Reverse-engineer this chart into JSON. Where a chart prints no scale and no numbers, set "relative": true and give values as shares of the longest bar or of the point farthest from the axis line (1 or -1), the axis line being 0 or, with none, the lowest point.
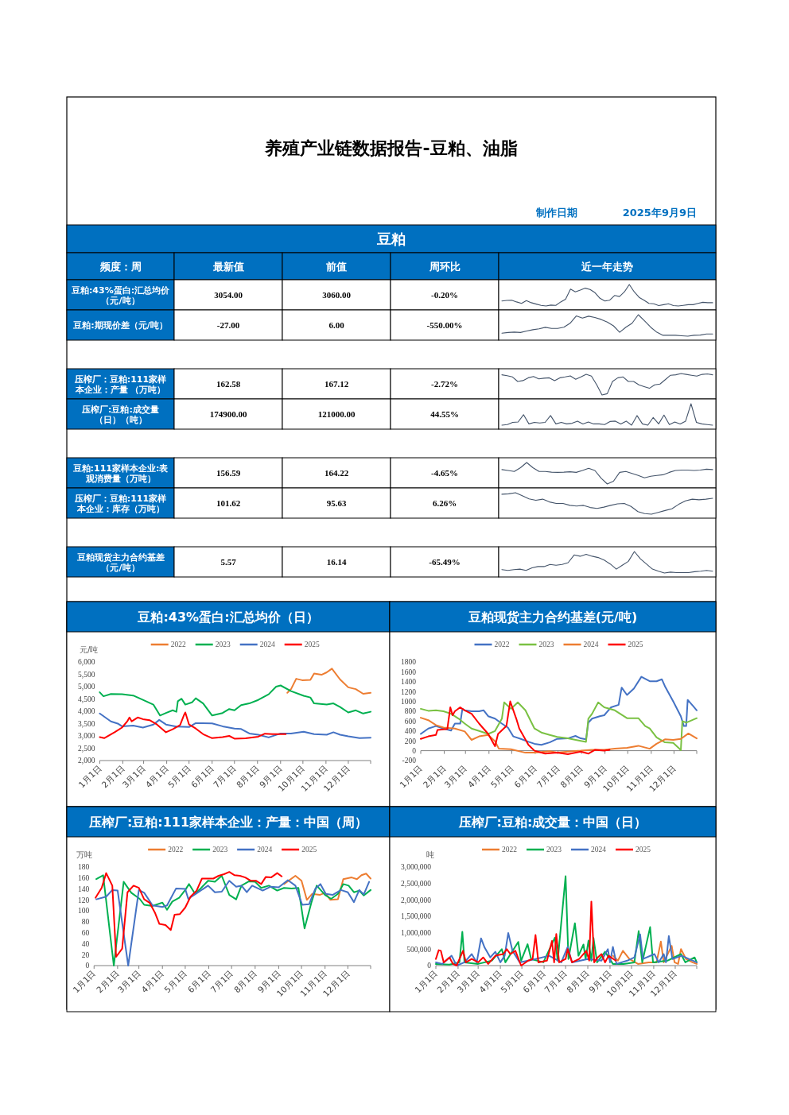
{
  "chart_data": [
    {
      "type": "other",
      "title": "养殖产业链数据报告-豆粕、油脂",
      "annotations": [
        "制作日期",
        "2025年9月9日"
      ]
    },
    {
      "type": "other",
      "title": "豆粕",
      "color": "#0070c0",
      "categories": [
        "频度：周",
        "最新值",
        "前值",
        "周环比",
        "近一年走势"
      ],
      "y_categories": [
        "豆粕:43%蛋白:汇总均价（元/吨）",
        "豆粕:期现价差（元/吨）",
        null,
        "压榨厂：豆粕:111家样本企业：产量 （万吨）",
        "压榨厂:豆粕:成交量（日）（吨）",
        null,
        "豆粕:111家样本企业:表观消费量（万吨）",
        "压榨厂：豆粕:111家样本企业：库存（万吨）",
        null,
        "豆粕现货主力合约基差（元/吨）"
      ],
      "cell_labels": [
        [
          "3054.00",
          "3060.00",
          "-0.20%"
        ],
        [
          "-27.00",
          "6.00",
          "-550.00%"
        ],
        null,
        [
          "162.58",
          "167.12",
          "-2.72%"
        ],
        [
          "174900.00",
          "121000.00",
          "44.55%"
        ],
        null,
        [
          "156.59",
          "164.22",
          "-4.65%"
        ],
        [
          "101.62",
          "95.63",
          "6.26%"
        ],
        null,
        [
          "5.57",
          "16.14",
          "-65.49%"
        ]
      ]
    },
    {
      "type": "line",
      "relative": true,
      "color": "#44546a",
      "categories": [
        null,
        null,
        null,
        null,
        null,
        null,
        null,
        null,
        null,
        null,
        null,
        null,
        null,
        null,
        null,
        null,
        null,
        null,
        null,
        null,
        null,
        null,
        null,
        null,
        null,
        null,
        null,
        null,
        null,
        null,
        null,
        null,
        null,
        null,
        null,
        null,
        null,
        null,
        null,
        null,
        null,
        null,
        null,
        null
      ],
      "values": [
        0.23,
        0.26,
        0.27,
        0.19,
        0.12,
        0.25,
        0.15,
        0.09,
        0.03,
        0,
        0.04,
        0.03,
        0.19,
        0.32,
        0.79,
        0.66,
        0.74,
        0.83,
        0.77,
        0.62,
        0.36,
        0.23,
        0.27,
        0.49,
        0.44,
        0.66,
        1,
        0.66,
        0.4,
        0.27,
        0.12,
        0.1,
        0.02,
        0.06,
        0.1,
        0.02,
        0,
        0.03,
        0.06,
        0.06,
        0.12,
        0.17,
        0.15,
        0.15
      ]
    },
    {
      "type": "line",
      "relative": true,
      "color": "#44546a",
      "categories": [
        null,
        null,
        null,
        null,
        null,
        null,
        null,
        null,
        null,
        null,
        null,
        null,
        null,
        null,
        null,
        null,
        null,
        null,
        null,
        null,
        null,
        null,
        null,
        null,
        null,
        null,
        null,
        null,
        null,
        null,
        null,
        null,
        null,
        null,
        null
      ],
      "values": [
        0.14,
        0.17,
        0.19,
        0.17,
        0.24,
        0.3,
        0.34,
        0.41,
        0.36,
        0.36,
        0.42,
        0.6,
        0.94,
        0.84,
        0.93,
        0.87,
        0.78,
        0.66,
        0.48,
        0.18,
        0.42,
        0.6,
        1,
        0.72,
        0.42,
        0.18,
        0.04,
        0.04,
        0.04,
        0.02,
        0,
        0.04,
        0.05,
        0.1,
        0.1
      ]
    },
    {
      "type": "line",
      "relative": true,
      "color": "#44546a",
      "categories": [
        null,
        null,
        null,
        null,
        null,
        null,
        null,
        null,
        null,
        null,
        null,
        null,
        null,
        null,
        null,
        null,
        null,
        null,
        null,
        null,
        null,
        null,
        null,
        null,
        null,
        null,
        null,
        null,
        null,
        null,
        null,
        null,
        null,
        null,
        null,
        null,
        null,
        null,
        null,
        null,
        null
      ],
      "values": [
        0.94,
        0.9,
        0.84,
        0.63,
        0.67,
        0.8,
        0.86,
        0.75,
        0.78,
        0.8,
        0.67,
        0.8,
        0.84,
        0.89,
        0.73,
        0.84,
        0.96,
        0.88,
        0.47,
        0,
        0.06,
        0.63,
        0.8,
        0.84,
        0.63,
        0.63,
        0.47,
        0.39,
        0.31,
        0.47,
        0.51,
        0.71,
        0.92,
        0.94,
        1,
        0.96,
        0.92,
        0.88,
        0.96,
        0.98,
        0.94
      ]
    },
    {
      "type": "line",
      "relative": true,
      "color": "#44546a",
      "categories": [
        null,
        null,
        null,
        null,
        null,
        null,
        null,
        null,
        null,
        null,
        null,
        null,
        null,
        null,
        null,
        null,
        null,
        null,
        null,
        null,
        null,
        null,
        null,
        null,
        null,
        null,
        null,
        null,
        null,
        null,
        null,
        null,
        null,
        null,
        null,
        null,
        null,
        null,
        null,
        null
      ],
      "values": [
        0,
        0.03,
        0.13,
        0.15,
        0.49,
        0.06,
        0.13,
        0.1,
        0.13,
        0.45,
        0.06,
        0.13,
        0.06,
        0.09,
        0.19,
        0.06,
        0.15,
        0.06,
        0.06,
        0.03,
        0.17,
        0.19,
        0.06,
        0.19,
        0,
        0.45,
        0.06,
        0,
        0.36,
        0.06,
        0.47,
        0.03,
        0.15,
        0.06,
        0.19,
        1,
        0.13,
        0.06,
        0.03,
        0
      ]
    },
    {
      "type": "line",
      "relative": true,
      "color": "#44546a",
      "categories": [
        null,
        null,
        null,
        null,
        null,
        null,
        null,
        null,
        null,
        null,
        null,
        null,
        null,
        null,
        null,
        null,
        null,
        null,
        null,
        null,
        null,
        null,
        null,
        null,
        null,
        null,
        null,
        null,
        null,
        null,
        null,
        null,
        null,
        null,
        null
      ],
      "values": [
        0.67,
        0.63,
        0.58,
        0.76,
        1,
        0.76,
        0.58,
        0.58,
        0.55,
        0.54,
        0.55,
        0.57,
        0.54,
        0.63,
        0.73,
        0.63,
        0.27,
        0,
        0.13,
        0.54,
        0.58,
        0.49,
        0.4,
        0.29,
        0.36,
        0.4,
        0.43,
        0.54,
        0.63,
        0.65,
        0.65,
        0.63,
        0.65,
        0.69,
        0.67
      ]
    },
    {
      "type": "line",
      "relative": true,
      "color": "#44546a",
      "categories": [
        null,
        null,
        null,
        null,
        null,
        null,
        null,
        null,
        null,
        null,
        null,
        null,
        null,
        null,
        null,
        null,
        null,
        null,
        null,
        null,
        null,
        null,
        null,
        null,
        null,
        null,
        null,
        null,
        null,
        null,
        null,
        null
      ],
      "values": [
        0.93,
        0.95,
        1,
        0.86,
        0.71,
        0.65,
        0.7,
        0.57,
        0.5,
        0.5,
        0.41,
        0.38,
        0.41,
        0.31,
        0.27,
        0.33,
        0.41,
        0.48,
        0.5,
        0.36,
        0.12,
        0.03,
        0,
        0.08,
        0.17,
        0.25,
        0.46,
        0.62,
        0.7,
        0.67,
        0.7,
        0.74
      ]
    },
    {
      "type": "line",
      "relative": true,
      "color": "#44546a",
      "categories": [
        null,
        null,
        null,
        null,
        null,
        null,
        null,
        null,
        null,
        null,
        null,
        null,
        null,
        null,
        null,
        null,
        null,
        null,
        null,
        null,
        null,
        null,
        null,
        null,
        null,
        null,
        null,
        null,
        null,
        null,
        null,
        null,
        null,
        null,
        null,
        null
      ],
      "values": [
        0.16,
        0.12,
        0.16,
        0.18,
        0.12,
        0.24,
        0.3,
        0.3,
        0.4,
        0.36,
        0.4,
        0.48,
        0.84,
        0.78,
        0.87,
        0.78,
        0.72,
        0.6,
        0.42,
        0.18,
        0.36,
        0.54,
        1,
        0.66,
        0.42,
        0.18,
        0.08,
        0,
        0.04,
        0.02,
        0.02,
        0.02,
        0.06,
        0.08,
        0.12,
        0.08
      ]
    },
    {
      "type": "line",
      "title": "豆粕:43%蛋白:汇总均价（日）",
      "ylabel": "元/吨",
      "legend": "top",
      "xlim": [
        "--01-01",
        "--12-31"
      ],
      "xticks": [
        {
          "value": "--01-01",
          "label": "1月1日"
        },
        {
          "value": "--02-01",
          "label": "2月1日"
        },
        {
          "value": "--03-01",
          "label": "3月1日"
        },
        {
          "value": "--04-01",
          "label": "4月1日"
        },
        {
          "value": "--05-01",
          "label": "5月1日"
        },
        {
          "value": "--06-01",
          "label": "6月1日"
        },
        {
          "value": "--07-01",
          "label": "7月1日"
        },
        {
          "value": "--08-01",
          "label": "8月1日"
        },
        {
          "value": "--09-01",
          "label": "9月1日"
        },
        {
          "value": "--10-01",
          "label": "10月1日"
        },
        {
          "value": "--11-01",
          "label": "11月1日"
        },
        {
          "value": "--12-01",
          "label": "12月1日"
        }
      ],
      "ylim": [
        2000,
        6000
      ],
      "yticks": [
        {
          "value": 2000,
          "label": "2,000"
        },
        {
          "value": 2500,
          "label": "2,500"
        },
        {
          "value": 3000,
          "label": "3,000"
        },
        {
          "value": 3500,
          "label": "3,500"
        },
        {
          "value": 4000,
          "label": "4,000"
        },
        {
          "value": 4500,
          "label": "4,500"
        },
        {
          "value": 5000,
          "label": "5,000"
        },
        {
          "value": 5500,
          "label": "5,500"
        },
        {
          "value": 6000,
          "label": "6,000"
        }
      ],
      "series": [
        {
          "name": "2022",
          "color": "#ed7d31",
          "x": [
            "--09-10",
            "--09-15",
            "--09-22",
            "--09-30",
            "--10-11",
            "--10-16",
            "--10-26",
            "--11-02",
            "--11-09",
            "--11-20",
            "--12-01",
            "--12-11",
            "--12-21",
            "--12-31"
          ],
          "values": [
            4750,
            4900,
            5320,
            5260,
            5270,
            5530,
            5480,
            5580,
            5730,
            5290,
            4970,
            4900,
            4710,
            4750
          ]
        },
        {
          "name": "2023",
          "color": "#00b050",
          "x": [
            "--01-01",
            "--01-06",
            "--01-16",
            "--01-31",
            "--02-15",
            "--02-28",
            "--03-14",
            "--03-23",
            "--03-31",
            "--04-09",
            "--04-14",
            "--04-16",
            "--04-21",
            "--04-26",
            "--05-05",
            "--05-10",
            "--05-20",
            "--06-01",
            "--06-15",
            "--06-24",
            "--07-01",
            "--07-10",
            "--07-21",
            "--08-02",
            "--08-16",
            "--08-26",
            "--09-01",
            "--09-15",
            "--10-02",
            "--10-11",
            "--10-16",
            "--11-02",
            "--11-11",
            "--11-20",
            "--12-01",
            "--12-11",
            "--12-21",
            "--12-31"
          ],
          "values": [
            4770,
            4610,
            4700,
            4690,
            4640,
            4460,
            4270,
            3830,
            3930,
            4040,
            3980,
            4410,
            4510,
            4270,
            4360,
            4530,
            4320,
            3830,
            3930,
            4090,
            4040,
            4250,
            4320,
            4460,
            4690,
            5000,
            5050,
            4820,
            4630,
            4560,
            4320,
            4270,
            4320,
            4170,
            3950,
            4040,
            3910,
            3980
          ]
        },
        {
          "name": "2024",
          "color": "#4472c4",
          "x": [
            "--01-01",
            "--01-16",
            "--01-26",
            "--01-31",
            "--02-15",
            "--02-28",
            "--03-14",
            "--03-22",
            "--03-31",
            "--04-14",
            "--05-01",
            "--05-10",
            "--06-01",
            "--06-15",
            "--07-01",
            "--07-10",
            "--07-21",
            "--08-02",
            "--08-16",
            "--09-01",
            "--09-15",
            "--10-02",
            "--10-16",
            "--11-02",
            "--11-11",
            "--11-20",
            "--12-01",
            "--12-16",
            "--12-31"
          ],
          "values": [
            3910,
            3590,
            3490,
            3390,
            3420,
            3340,
            3460,
            3650,
            3460,
            3380,
            3360,
            3520,
            3510,
            3390,
            3300,
            3280,
            3100,
            3050,
            2940,
            3100,
            3100,
            3170,
            3070,
            3050,
            3150,
            3050,
            2980,
            2910,
            2930
          ]
        },
        {
          "name": "2025",
          "color": "#ff0000",
          "x": [
            "--01-01",
            "--01-07",
            "--01-21",
            "--01-31",
            "--02-07",
            "--02-10",
            "--02-13",
            "--02-21",
            "--02-28",
            "--03-09",
            "--03-19",
            "--03-31",
            "--04-09",
            "--04-19",
            "--04-24",
            "--04-26",
            "--05-01",
            "--05-10",
            "--05-20",
            "--06-01",
            "--06-15",
            "--06-24",
            "--07-01",
            "--07-16",
            "--08-02",
            "--08-11",
            "--08-21",
            "--09-01",
            "--09-08"
          ],
          "values": [
            2950,
            2910,
            3150,
            3340,
            3590,
            3750,
            3590,
            3750,
            3680,
            3640,
            3460,
            3150,
            3270,
            3440,
            3830,
            3950,
            3460,
            3300,
            3070,
            2910,
            2950,
            3000,
            2890,
            2900,
            2970,
            3090,
            3070,
            3070,
            3070
          ]
        }
      ]
    },
    {
      "type": "line",
      "title": "豆粕现货主力合约基差(元/吨)",
      "legend": "top",
      "xlim": [
        "--01-01",
        "--12-31"
      ],
      "xticks": [
        {
          "value": "--01-01",
          "label": "1月1日"
        },
        {
          "value": "--02-01",
          "label": "2月1日"
        },
        {
          "value": "--03-01",
          "label": "3月1日"
        },
        {
          "value": "--04-01",
          "label": "4月1日"
        },
        {
          "value": "--05-01",
          "label": "5月1日"
        },
        {
          "value": "--06-01",
          "label": "6月1日"
        },
        {
          "value": "--07-01",
          "label": "7月1日"
        },
        {
          "value": "--08-01",
          "label": "8月1日"
        },
        {
          "value": "--09-01",
          "label": "9月1日"
        },
        {
          "value": "--10-01",
          "label": "10月1日"
        },
        {
          "value": "--11-01",
          "label": "11月1日"
        },
        {
          "value": "--12-01",
          "label": "12月1日"
        }
      ],
      "ylim": [
        -200,
        1800
      ],
      "yticks": [
        -200,
        0,
        200,
        400,
        600,
        800,
        1000,
        1200,
        1400,
        1600,
        1800
      ],
      "series": [
        {
          "name": "2022",
          "color": "#4472c4",
          "x": [
            "--01-01",
            "--01-11",
            "--01-21",
            "--01-31",
            "--02-10",
            "--02-15",
            "--02-22",
            "--02-25",
            "--02-28",
            "--03-09",
            "--03-19",
            "--03-25",
            "--03-31",
            "--04-09",
            "--04-18",
            "--04-26",
            "--05-03",
            "--05-13",
            "--05-23",
            "--05-31",
            "--06-09",
            "--06-20",
            "--06-30",
            "--07-14",
            "--07-24",
            "--07-31",
            "--08-07",
            "--08-10",
            "--08-15",
            "--08-25",
            "--08-31",
            "--09-09",
            "--09-19",
            "--09-23",
            "--09-30",
            "--10-09",
            "--10-19",
            "--10-30",
            "--11-08",
            "--11-15",
            "--11-19",
            "--11-30",
            "--12-10",
            "--12-14",
            "--12-17",
            "--12-19",
            "--12-26",
            "--12-31"
          ],
          "values": [
            340,
            450,
            500,
            450,
            410,
            550,
            550,
            850,
            820,
            800,
            800,
            820,
            700,
            650,
            550,
            470,
            290,
            240,
            180,
            140,
            120,
            170,
            240,
            250,
            300,
            250,
            230,
            570,
            650,
            700,
            720,
            880,
            930,
            1280,
            1130,
            1260,
            1500,
            1410,
            1410,
            1450,
            1310,
            1000,
            700,
            500,
            500,
            1030,
            910,
            820
          ]
        },
        {
          "name": "2023",
          "color": "#7ac143",
          "x": [
            "--01-01",
            "--01-11",
            "--01-21",
            "--01-31",
            "--02-10",
            "--02-20",
            "--02-28",
            "--03-09",
            "--03-19",
            "--03-31",
            "--04-09",
            "--04-18",
            "--04-21",
            "--04-30",
            "--05-09",
            "--05-19",
            "--05-31",
            "--06-09",
            "--06-20",
            "--06-30",
            "--07-14",
            "--07-31",
            "--08-07",
            "--08-10",
            "--08-15",
            "--08-23",
            "--08-31",
            "--09-14",
            "--09-30",
            "--10-15",
            "--10-24",
            "--10-30",
            "--11-08",
            "--11-19",
            "--11-30",
            "--12-07",
            "--12-10",
            "--12-12",
            "--12-17",
            "--12-31"
          ],
          "values": [
            850,
            810,
            820,
            800,
            750,
            650,
            550,
            450,
            400,
            340,
            400,
            650,
            980,
            850,
            980,
            820,
            450,
            370,
            320,
            280,
            250,
            200,
            180,
            650,
            750,
            980,
            880,
            820,
            660,
            660,
            500,
            450,
            270,
            170,
            160,
            60,
            10,
            600,
            570,
            660
          ]
        },
        {
          "name": "2024",
          "color": "#ed7d31",
          "x": [
            "--01-01",
            "--01-11",
            "--01-21",
            "--01-31",
            "--02-15",
            "--02-28",
            "--03-09",
            "--03-19",
            "--03-31",
            "--04-09",
            "--04-14",
            "--04-30",
            "--05-19",
            "--05-31",
            "--06-20",
            "--06-30",
            "--07-20",
            "--07-31",
            "--08-15",
            "--08-31",
            "--09-14",
            "--09-30",
            "--10-15",
            "--10-30",
            "--11-08",
            "--11-19",
            "--11-30",
            "--12-10",
            "--12-20",
            "--12-31"
          ],
          "values": [
            670,
            620,
            520,
            470,
            450,
            390,
            220,
            290,
            320,
            190,
            40,
            30,
            -40,
            -40,
            -10,
            -40,
            -10,
            0,
            20,
            20,
            40,
            60,
            100,
            40,
            140,
            230,
            220,
            240,
            350,
            250
          ]
        },
        {
          "name": "2025",
          "color": "#ff0000",
          "x": [
            "--01-01",
            "--01-11",
            "--01-21",
            "--01-23",
            "--02-05",
            "--02-09",
            "--02-12",
            "--02-15",
            "--02-22",
            "--02-28",
            "--03-09",
            "--03-19",
            "--03-31",
            "--04-09",
            "--04-13",
            "--04-24",
            "--04-29",
            "--05-07",
            "--05-11",
            "--05-23",
            "--05-31",
            "--06-14",
            "--06-30",
            "--07-14",
            "--07-31",
            "--08-10",
            "--08-19",
            "--08-31",
            "--09-07"
          ],
          "values": [
            240,
            290,
            320,
            420,
            440,
            880,
            720,
            800,
            880,
            820,
            750,
            550,
            340,
            90,
            340,
            500,
            1000,
            650,
            450,
            120,
            0,
            -60,
            -40,
            -70,
            -20,
            -60,
            20,
            0,
            20
          ]
        }
      ]
    },
    {
      "type": "line",
      "title": "压榨厂:豆粕:111家样本企业：产量：中国（周）",
      "ylabel": "万吨",
      "legend": "top",
      "xlim": [
        "--01-01",
        "--12-31"
      ],
      "xticks": [
        {
          "value": "--01-01",
          "label": "1月1日"
        },
        {
          "value": "--02-01",
          "label": "2月1日"
        },
        {
          "value": "--03-01",
          "label": "3月1日"
        },
        {
          "value": "--04-01",
          "label": "4月1日"
        },
        {
          "value": "--05-01",
          "label": "5月1日"
        },
        {
          "value": "--06-01",
          "label": "6月1日"
        },
        {
          "value": "--07-01",
          "label": "7月1日"
        },
        {
          "value": "--08-01",
          "label": "8月1日"
        },
        {
          "value": "--09-01",
          "label": "9月1日"
        },
        {
          "value": "--10-01",
          "label": "10月1日"
        },
        {
          "value": "--11-01",
          "label": "11月1日"
        },
        {
          "value": "--12-01",
          "label": "12月1日"
        }
      ],
      "ylim": [
        0,
        180
      ],
      "yticks": [
        0,
        20,
        40,
        60,
        80,
        100,
        120,
        140,
        160,
        180
      ],
      "series": [
        {
          "name": "2022",
          "color": "#ed7d31",
          "x": [
            "--09-08",
            "--09-23",
            "--10-01",
            "--10-08",
            "--10-15",
            "--10-25",
            "--11-01",
            "--11-08",
            "--11-18",
            "--11-25",
            "--12-06",
            "--12-13",
            "--12-19",
            "--12-25",
            "--12-31"
          ],
          "values": [
            149,
            164,
            155,
            120,
            131,
            129,
            133,
            120,
            121,
            158,
            161,
            158,
            165,
            168,
            159
          ]
        },
        {
          "name": "2023",
          "color": "#00b050",
          "x": [
            "--01-04",
            "--01-13",
            "--01-27",
            "--02-09",
            "--02-19",
            "--03-02",
            "--03-08",
            "--03-19",
            "--04-01",
            "--04-07",
            "--04-14",
            "--04-23",
            "--05-01",
            "--05-06",
            "--05-14",
            "--05-22",
            "--05-31",
            "--06-09",
            "--06-18",
            "--06-28",
            "--07-07",
            "--07-14",
            "--07-24",
            "--08-01",
            "--08-09",
            "--08-19",
            "--08-30",
            "--09-08",
            "--09-18",
            "--09-27",
            "--10-05",
            "--10-14",
            "--10-21",
            "--11-01",
            "--11-09",
            "--11-18",
            "--11-25",
            "--12-02",
            "--12-09",
            "--12-16",
            "--12-22",
            "--12-31"
          ],
          "values": [
            158,
            165,
            0,
            153,
            133,
            122,
            111,
            109,
            115,
            102,
            117,
            124,
            138,
            149,
            131,
            142,
            155,
            153,
            164,
            129,
            121,
            146,
            154,
            153,
            142,
            146,
            137,
            142,
            141,
            142,
            68,
            115,
            146,
            129,
            122,
            131,
            149,
            146,
            134,
            137,
            128,
            138
          ]
        },
        {
          "name": "2024",
          "color": "#4472c4",
          "x": [
            "--01-04",
            "--01-17",
            "--01-25",
            "--02-01",
            "--02-15",
            "--03-01",
            "--03-08",
            "--03-19",
            "--04-01",
            "--04-07",
            "--04-19",
            "--05-01",
            "--05-05",
            "--05-17",
            "--05-31",
            "--06-09",
            "--06-18",
            "--06-28",
            "--07-07",
            "--07-14",
            "--07-21",
            "--07-28",
            "--08-11",
            "--08-21",
            "--09-01",
            "--09-13",
            "--09-23",
            "--10-02",
            "--10-11",
            "--10-19",
            "--10-26",
            "--11-02",
            "--11-11",
            "--11-22",
            "--12-01",
            "--12-09",
            "--12-16",
            "--12-22",
            "--12-29"
          ],
          "values": [
            121,
            126,
            138,
            137,
            0,
            138,
            133,
            110,
            107,
            110,
            141,
            140,
            122,
            133,
            146,
            134,
            135,
            155,
            144,
            146,
            134,
            146,
            137,
            144,
            143,
            156,
            146,
            111,
            112,
            140,
            149,
            131,
            129,
            138,
            134,
            116,
            138,
            130,
            153
          ]
        },
        {
          "name": "2025",
          "color": "#ff0000",
          "x": [
            "--01-03",
            "--01-11",
            "--01-17",
            "--01-25",
            "--01-30",
            "--02-07",
            "--02-14",
            "--02-22",
            "--03-01",
            "--03-08",
            "--03-15",
            "--03-22",
            "--03-28",
            "--04-05",
            "--04-12",
            "--04-17",
            "--04-24",
            "--05-01",
            "--05-08",
            "--05-16",
            "--05-23",
            "--05-31",
            "--06-07",
            "--06-14",
            "--06-21",
            "--06-28",
            "--07-05",
            "--07-12",
            "--07-19",
            "--07-26",
            "--08-02",
            "--08-09",
            "--08-15",
            "--08-22",
            "--08-30",
            "--09-05"
          ],
          "values": [
            124,
            142,
            169,
            146,
            16,
            31,
            134,
            146,
            142,
            121,
            115,
            97,
            76,
            74,
            65,
            93,
            94,
            106,
            126,
            137,
            159,
            159,
            159,
            164,
            167,
            171,
            165,
            164,
            161,
            155,
            155,
            149,
            162,
            161,
            169,
            163
          ]
        }
      ]
    },
    {
      "type": "line",
      "title": "压榨厂:豆粕:成交量：中国（日）",
      "ylabel": "吨",
      "legend": "top",
      "xlim": [
        "--01-01",
        "--12-31"
      ],
      "xticks": [
        {
          "value": "--01-01",
          "label": "1月1日"
        },
        {
          "value": "--02-01",
          "label": "2月1日"
        },
        {
          "value": "--03-01",
          "label": "3月1日"
        },
        {
          "value": "--04-01",
          "label": "4月1日"
        },
        {
          "value": "--05-01",
          "label": "5月1日"
        },
        {
          "value": "--06-01",
          "label": "6月1日"
        },
        {
          "value": "--07-01",
          "label": "7月1日"
        },
        {
          "value": "--08-01",
          "label": "8月1日"
        },
        {
          "value": "--09-01",
          "label": "9月1日"
        },
        {
          "value": "--10-01",
          "label": "10月1日"
        },
        {
          "value": "--11-01",
          "label": "11月1日"
        },
        {
          "value": "--12-01",
          "label": "12月1日"
        }
      ],
      "ylim": [
        0,
        3000000
      ],
      "yticks": [
        0,
        {
          "value": 500000,
          "label": "500,000"
        },
        {
          "value": 1000000,
          "label": "1,000,000"
        },
        {
          "value": 1500000,
          "label": "1,500,000"
        },
        {
          "value": 2000000,
          "label": "2,000,000"
        },
        {
          "value": 2500000,
          "label": "2,500,000"
        },
        {
          "value": 3000000,
          "label": "3,000,000"
        }
      ],
      "series": [
        {
          "name": "2022",
          "color": "#ed7d31",
          "x": [
            "--09-05",
            "--09-12",
            "--09-19",
            "--09-28",
            "--10-10",
            "--10-25",
            "--11-05",
            "--11-11",
            "--11-15",
            "--11-26",
            "--11-30",
            "--12-05",
            "--12-09",
            "--12-16",
            "--12-25",
            "--12-31"
          ],
          "values": [
            300000,
            150000,
            450000,
            200000,
            50000,
            100000,
            100000,
            730000,
            100000,
            600000,
            100000,
            50000,
            500000,
            200000,
            100000,
            50000
          ]
        },
        {
          "name": "2023",
          "color": "#00b050",
          "x": [
            "--01-01",
            "--01-20",
            "--02-03",
            "--02-07",
            "--02-10",
            "--03-01",
            "--03-20",
            "--04-03",
            "--04-08",
            "--04-26",
            "--04-30",
            "--05-09",
            "--05-14",
            "--05-31",
            "--06-16",
            "--06-20",
            "--07-01",
            "--07-05",
            "--07-14",
            "--07-19",
            "--07-26",
            "--07-29",
            "--08-02",
            "--08-06",
            "--08-09",
            "--08-14",
            "--08-25",
            "--09-05",
            "--09-20",
            "--10-05",
            "--10-11",
            "--10-16",
            "--10-27",
            "--10-31",
            "--11-20",
            "--12-09",
            "--12-15",
            "--12-28",
            "--12-31"
          ],
          "values": [
            50000,
            30000,
            100000,
            1030000,
            100000,
            50000,
            150000,
            500000,
            100000,
            720000,
            150000,
            650000,
            200000,
            100000,
            850000,
            150000,
            2720000,
            200000,
            1290000,
            300000,
            640000,
            200000,
            760000,
            150000,
            840000,
            100000,
            420000,
            50000,
            50000,
            100000,
            1050000,
            100000,
            1170000,
            100000,
            150000,
            350000,
            100000,
            250000,
            100000
          ]
        },
        {
          "name": "2024",
          "color": "#4472c4",
          "x": [
            "--01-01",
            "--01-10",
            "--01-23",
            "--01-30",
            "--02-10",
            "--02-20",
            "--02-27",
            "--03-05",
            "--03-10",
            "--03-18",
            "--03-25",
            "--04-01",
            "--04-07",
            "--04-12",
            "--04-18",
            "--04-28",
            "--05-20",
            "--06-08",
            "--06-25",
            "--07-04",
            "--07-10",
            "--08-01",
            "--08-20",
            "--08-29",
            "--09-01",
            "--09-05",
            "--09-10",
            "--09-25",
            "--10-05",
            "--10-13",
            "--10-17",
            "--11-02",
            "--11-08",
            "--11-15",
            "--11-18",
            "--11-22",
            "--11-27",
            "--12-10",
            "--12-20",
            "--12-31"
          ],
          "values": [
            100000,
            50000,
            300000,
            0,
            100000,
            350000,
            100000,
            830000,
            550000,
            250000,
            420000,
            100000,
            300000,
            990000,
            450000,
            100000,
            200000,
            300000,
            100000,
            570000,
            100000,
            200000,
            150000,
            500000,
            100000,
            570000,
            50000,
            150000,
            250000,
            950000,
            200000,
            350000,
            100000,
            350000,
            100000,
            900000,
            200000,
            300000,
            200000,
            100000
          ]
        },
        {
          "name": "2025",
          "color": "#ff0000",
          "x": [
            "--01-01",
            "--01-05",
            "--01-08",
            "--01-12",
            "--01-20",
            "--01-25",
            "--01-30",
            "--02-08",
            "--02-12",
            "--02-20",
            "--03-01",
            "--03-08",
            "--03-15",
            "--03-25",
            "--04-05",
            "--04-10",
            "--04-15",
            "--04-22",
            "--04-30",
            "--05-10",
            "--05-16",
            "--05-20",
            "--05-24",
            "--06-05",
            "--06-12",
            "--06-15",
            "--06-18",
            "--06-22",
            "--07-01",
            "--07-04",
            "--07-10",
            "--07-20",
            "--07-30",
            "--08-03",
            "--08-06",
            "--08-10",
            "--08-15",
            "--08-20",
            "--08-25",
            "--08-30",
            "--09-09"
          ],
          "values": [
            200000,
            470000,
            450000,
            100000,
            250000,
            50000,
            0,
            450000,
            100000,
            200000,
            100000,
            250000,
            50000,
            300000,
            350000,
            500000,
            350000,
            450000,
            0,
            150000,
            200000,
            930000,
            100000,
            150000,
            750000,
            100000,
            960000,
            100000,
            200000,
            500000,
            100000,
            200000,
            450000,
            150000,
            1950000,
            100000,
            250000,
            350000,
            100000,
            300000,
            150000
          ]
        }
      ]
    }
  ]
}
